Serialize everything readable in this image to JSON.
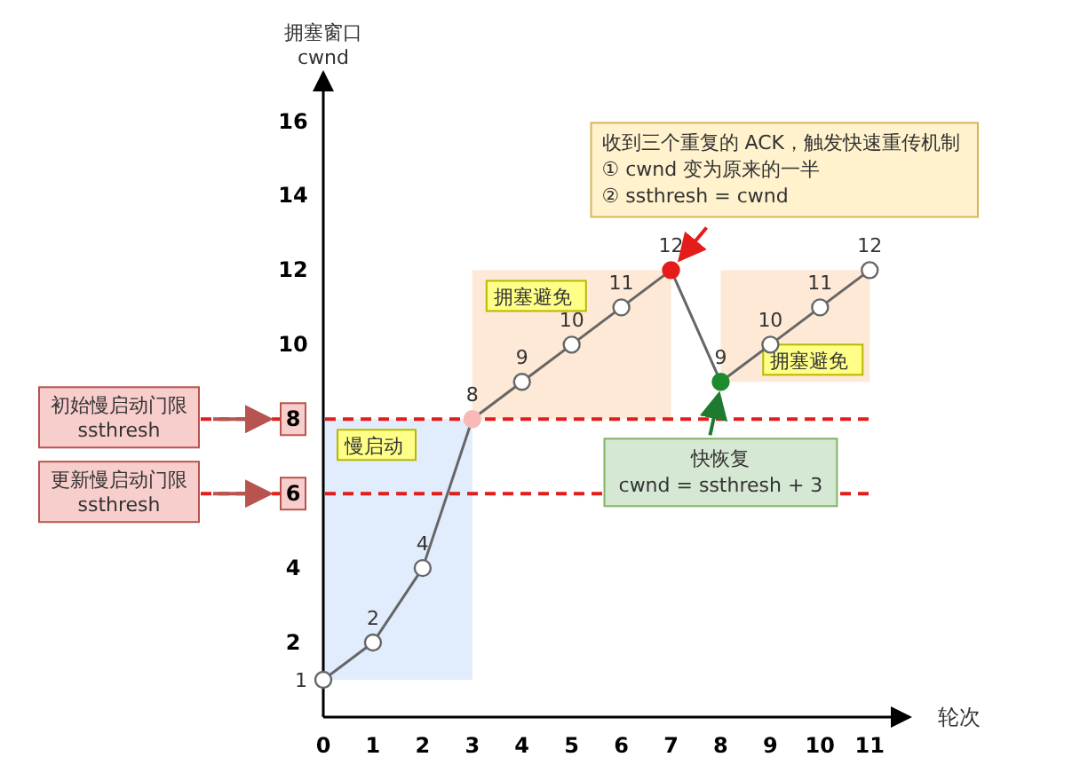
{
  "chart_data": {
    "type": "line",
    "xlabel": "轮次",
    "ylabel": "拥塞窗口\ncwnd",
    "x": [
      0,
      1,
      2,
      3,
      4,
      5,
      6,
      7,
      8,
      9,
      10,
      11
    ],
    "series": [
      {
        "color": "#666666",
        "colors": [
          "#ffffff",
          "#ffffff",
          "#ffffff",
          "#f8b9b9",
          "#ffffff",
          "#ffffff",
          "#ffffff",
          "#e51c1c",
          "#1e8a2e",
          "#ffffff",
          "#ffffff",
          "#ffffff"
        ],
        "values": [
          1,
          2,
          4,
          8,
          9,
          10,
          11,
          12,
          9,
          10,
          11,
          12
        ]
      }
    ],
    "marker": "circle",
    "data_labels": true,
    "grid": false,
    "xlim": [
      0,
      11.8
    ],
    "ylim": [
      0,
      17.3
    ],
    "xticks": [
      0,
      1,
      2,
      3,
      4,
      5,
      6,
      7,
      8,
      9,
      10,
      11
    ],
    "yticks": [
      2,
      4,
      6,
      8,
      10,
      12,
      14,
      16
    ],
    "ref_lines": [
      {
        "axis": "y",
        "value": 8,
        "label": "初始慢启动门限\nssthresh",
        "color": "#e51c1c",
        "line_style": "dashed"
      },
      {
        "axis": "y",
        "value": 6,
        "label": "更新慢启动门限\nssthresh",
        "color": "#e51c1c",
        "line_style": "dashed"
      }
    ],
    "bands": [
      {
        "axis": "x",
        "from": 0,
        "to": 3,
        "label": "慢启动",
        "color": "#dae8fc"
      },
      {
        "axis": "x",
        "from": 3,
        "to": 7,
        "label": "拥塞避免",
        "color": "#fde3cc"
      },
      {
        "axis": "x",
        "from": 8,
        "to": 11,
        "label": "拥塞避免",
        "color": "#fde3cc"
      }
    ],
    "annotations": [
      {
        "text": "收到三个重复的 ACK，触发快速重传机制\n① cwnd 变为原来的一半\n② ssthresh = cwnd",
        "x": 7,
        "y": 12
      },
      {
        "text": "快恢复\ncwnd = ssthresh + 3",
        "x": 8,
        "y": 9
      }
    ]
  }
}
